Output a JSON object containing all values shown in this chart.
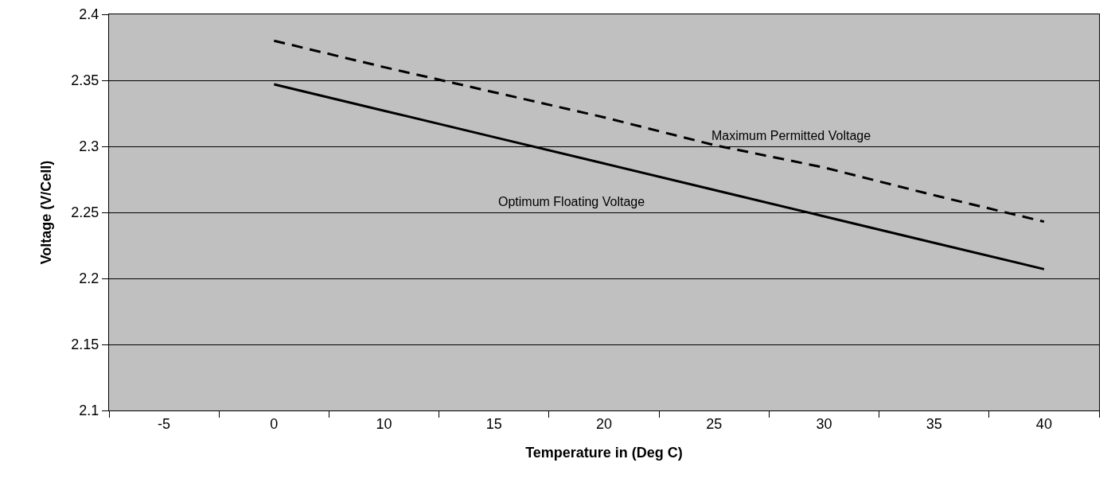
{
  "chart_data": {
    "type": "line",
    "xlabel": "Temperature in (Deg C)",
    "ylabel": "Voltage (V/Cell)",
    "categories": [
      "-5",
      "0",
      "10",
      "15",
      "20",
      "25",
      "30",
      "35",
      "40"
    ],
    "series": [
      {
        "name": "Maximum Permitted Voltage",
        "color": "#000000",
        "line_style": "dashed",
        "values": [
          null,
          2.38,
          2.36,
          2.341,
          2.322,
          2.301,
          2.284,
          2.263,
          2.243
        ]
      },
      {
        "name": "Optimum Floating Voltage",
        "color": "#000000",
        "line_style": "solid",
        "values": [
          null,
          2.347,
          2.327,
          2.307,
          2.287,
          2.267,
          2.247,
          2.227,
          2.207
        ]
      }
    ],
    "ylim": [
      2.1,
      2.4
    ],
    "yticks": [
      2.1,
      2.15,
      2.2,
      2.25,
      2.3,
      2.35,
      2.4
    ],
    "grid": "y",
    "legend": false,
    "marker": "none"
  }
}
